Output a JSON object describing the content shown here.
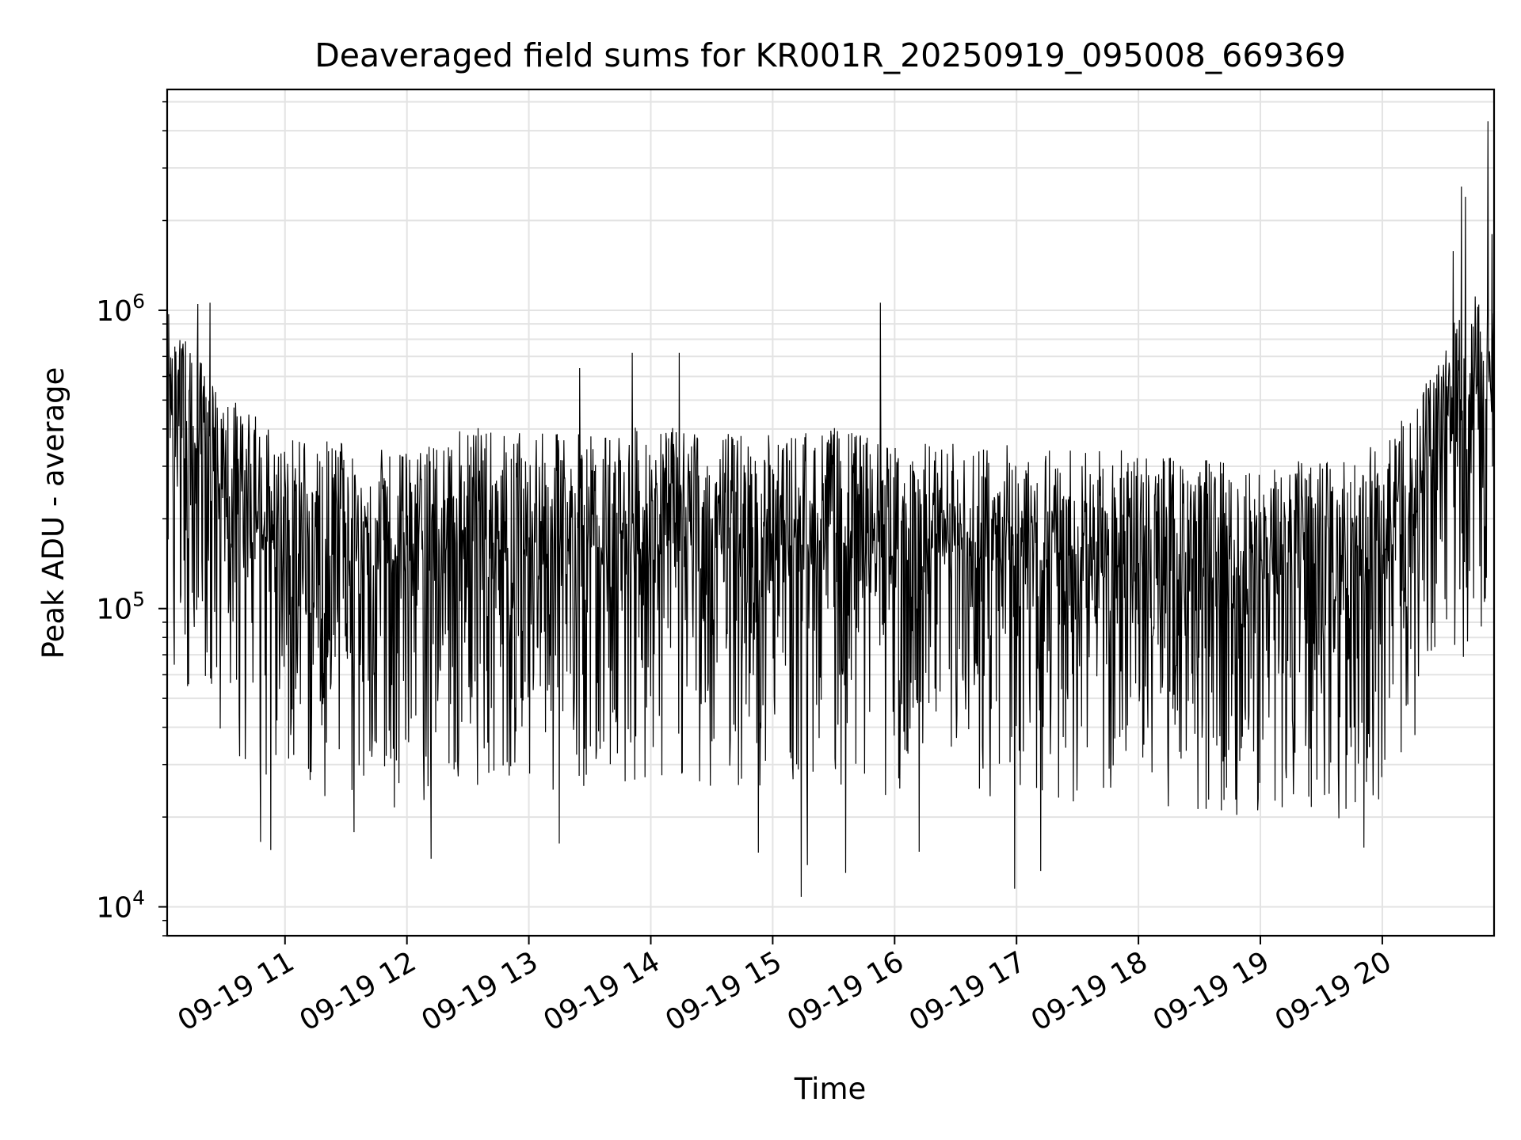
{
  "chart_data": {
    "type": "line",
    "title": "Deaveraged field sums for KR001R_20250919_095008_669369",
    "xlabel": "Time",
    "ylabel": "Peak ADU - average",
    "x_start": "2025-09-19 10:02",
    "x_end": "2025-09-19 20:55",
    "xlim": [
      "2025-09-19 10:02",
      "2025-09-19 20:55"
    ],
    "ylim": [
      8000,
      5500000
    ],
    "yscale": "log",
    "grid": true,
    "legend": "none",
    "x_ticks": [
      {
        "x": "2025-09-19 11:00",
        "label": "09-19 11"
      },
      {
        "x": "2025-09-19 12:00",
        "label": "09-19 12"
      },
      {
        "x": "2025-09-19 13:00",
        "label": "09-19 13"
      },
      {
        "x": "2025-09-19 14:00",
        "label": "09-19 14"
      },
      {
        "x": "2025-09-19 15:00",
        "label": "09-19 15"
      },
      {
        "x": "2025-09-19 16:00",
        "label": "09-19 16"
      },
      {
        "x": "2025-09-19 17:00",
        "label": "09-19 17"
      },
      {
        "x": "2025-09-19 18:00",
        "label": "09-19 18"
      },
      {
        "x": "2025-09-19 19:00",
        "label": "09-19 19"
      },
      {
        "x": "2025-09-19 20:00",
        "label": "09-19 20"
      }
    ],
    "y_ticks": [
      {
        "value": 10000,
        "base": "10",
        "exp": "4"
      },
      {
        "value": 100000,
        "base": "10",
        "exp": "5"
      },
      {
        "value": 1000000,
        "base": "10",
        "exp": "6"
      }
    ],
    "series": [
      {
        "color": "#000000",
        "anchors": [
          {
            "x": "2025-09-19 10:02",
            "y": 420000
          },
          {
            "x": "2025-09-19 10:15",
            "y": 300000
          },
          {
            "x": "2025-09-19 10:35",
            "y": 210000
          },
          {
            "x": "2025-09-19 11:00",
            "y": 160000
          },
          {
            "x": "2025-09-19 11:30",
            "y": 150000
          },
          {
            "x": "2025-09-19 12:00",
            "y": 140000
          },
          {
            "x": "2025-09-19 12:30",
            "y": 170000
          },
          {
            "x": "2025-09-19 13:00",
            "y": 160000
          },
          {
            "x": "2025-09-19 14:00",
            "y": 170000
          },
          {
            "x": "2025-09-19 15:00",
            "y": 160000
          },
          {
            "x": "2025-09-19 15:30",
            "y": 170000
          },
          {
            "x": "2025-09-19 16:00",
            "y": 150000
          },
          {
            "x": "2025-09-19 17:00",
            "y": 150000
          },
          {
            "x": "2025-09-19 18:00",
            "y": 140000
          },
          {
            "x": "2025-09-19 19:00",
            "y": 130000
          },
          {
            "x": "2025-09-19 19:40",
            "y": 130000
          },
          {
            "x": "2025-09-19 20:05",
            "y": 160000
          },
          {
            "x": "2025-09-19 20:20",
            "y": 230000
          },
          {
            "x": "2025-09-19 20:35",
            "y": 380000
          },
          {
            "x": "2025-09-19 20:45",
            "y": 470000
          },
          {
            "x": "2025-09-19 20:55",
            "y": 520000
          }
        ],
        "peaks": [
          {
            "x": "2025-09-19 10:02",
            "y": 950000
          },
          {
            "x": "2025-09-19 10:17",
            "y": 1050000
          },
          {
            "x": "2025-09-19 10:23",
            "y": 1060000
          },
          {
            "x": "2025-09-19 13:25",
            "y": 640000
          },
          {
            "x": "2025-09-19 13:51",
            "y": 720000
          },
          {
            "x": "2025-09-19 14:14",
            "y": 720000
          },
          {
            "x": "2025-09-19 15:53",
            "y": 1060000
          },
          {
            "x": "2025-09-19 20:35",
            "y": 1580000
          },
          {
            "x": "2025-09-19 20:39",
            "y": 2600000
          },
          {
            "x": "2025-09-19 20:41",
            "y": 2400000
          },
          {
            "x": "2025-09-19 20:52",
            "y": 4300000
          },
          {
            "x": "2025-09-19 20:54",
            "y": 1800000
          }
        ],
        "troughs": [
          {
            "x": "2025-09-19 10:48",
            "y": 16500
          },
          {
            "x": "2025-09-19 10:53",
            "y": 15500
          },
          {
            "x": "2025-09-19 11:34",
            "y": 17800
          },
          {
            "x": "2025-09-19 12:12",
            "y": 14500
          },
          {
            "x": "2025-09-19 13:15",
            "y": 16300
          },
          {
            "x": "2025-09-19 14:53",
            "y": 15200
          },
          {
            "x": "2025-09-19 15:14",
            "y": 10800
          },
          {
            "x": "2025-09-19 15:17",
            "y": 13800
          },
          {
            "x": "2025-09-19 15:36",
            "y": 13000
          },
          {
            "x": "2025-09-19 16:12",
            "y": 15300
          },
          {
            "x": "2025-09-19 16:59",
            "y": 11500
          },
          {
            "x": "2025-09-19 17:12",
            "y": 13200
          },
          {
            "x": "2025-09-19 19:51",
            "y": 15800
          }
        ]
      }
    ]
  }
}
